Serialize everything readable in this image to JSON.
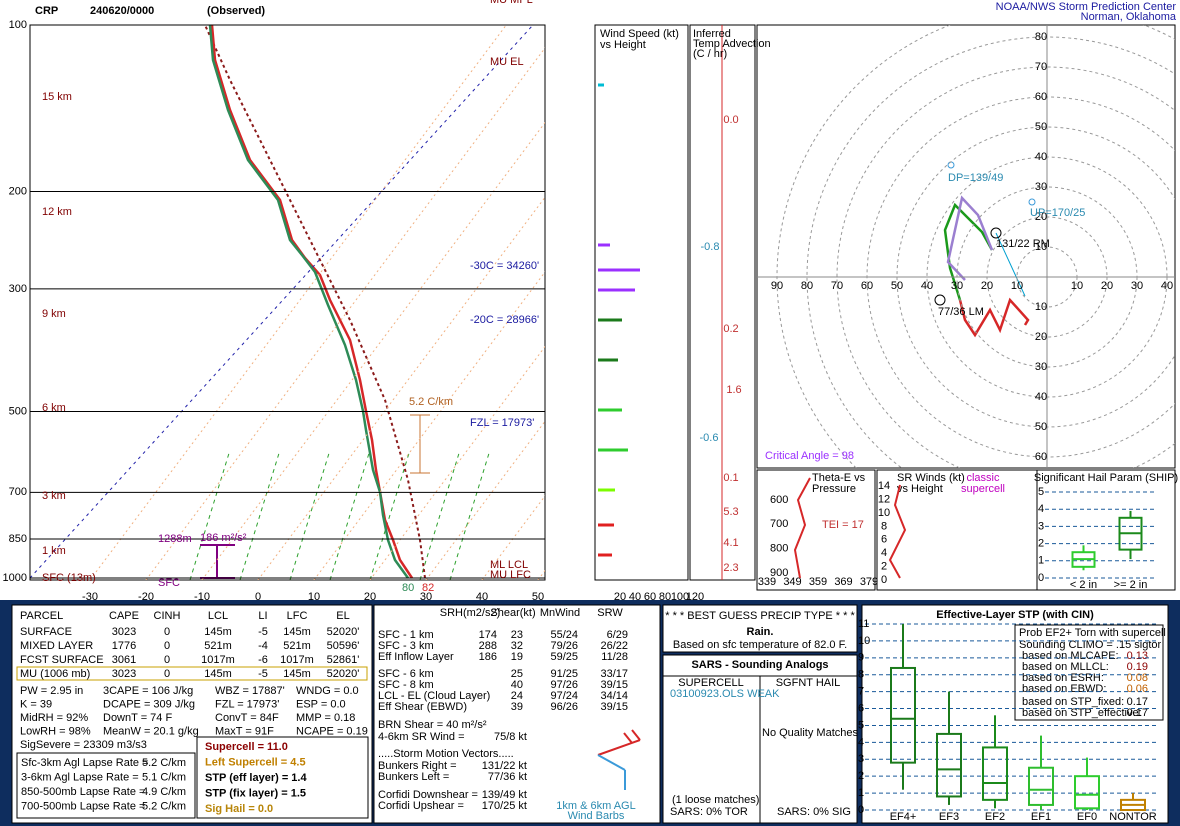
{
  "header": {
    "station": "CRP",
    "date": "240620/0000",
    "kind": "(Observed)",
    "org": "NOAA/NWS Storm Prediction Center",
    "place": "Norman, Oklahoma"
  },
  "skewt": {
    "pressures": [
      100,
      200,
      300,
      500,
      700,
      850,
      1000
    ],
    "heights": [
      "15 km",
      "12 km",
      "9 km",
      "6 km",
      "3 km",
      "1 km",
      "SFC (13m)"
    ],
    "temps": [
      -30,
      -20,
      -10,
      0,
      10,
      20,
      30,
      40,
      50
    ],
    "labels": {
      "mu_mpl": "MU MPL",
      "mu_el": "MU EL",
      "ml_lcl": "ML LCL",
      "mu_lfc": "MU LFC",
      "m30": "-30C = 34260'",
      "m20": "-20C = 28966'",
      "fzl": "FZL = 17973'",
      "lapse": "5.2 C/km",
      "eff_top": "1288m",
      "esrh": "186 m²/s²",
      "sfc": "SFC",
      "td": "80",
      "t": "82"
    }
  },
  "wind_profile": {
    "title": [
      "Wind Speed (kt)",
      "vs Height"
    ],
    "xticks": [
      20,
      40,
      60,
      80,
      100,
      120
    ]
  },
  "temp_adv": {
    "title": [
      "Inferred",
      "Temp Advection",
      "(C / hr)"
    ],
    "values": [
      "0.0",
      "-0.8",
      "0.2",
      "1.6",
      "-0.6",
      "0.1",
      "5.3",
      "4.1",
      "2.3"
    ]
  },
  "hodograph": {
    "rings": [
      10,
      20,
      30,
      40,
      50,
      60,
      70,
      80,
      90
    ],
    "dp": "DP=139/49",
    "up": "UP=170/25",
    "rm": "131/22 RM",
    "lm": "77/36 LM",
    "critical": "Critical Angle = 98"
  },
  "theta_e": {
    "title": [
      "Theta-E vs",
      "Pressure"
    ],
    "tei": "TEI = 17",
    "yticks": [
      600,
      700,
      800,
      900
    ],
    "xticks": [
      339,
      349,
      359,
      369,
      379
    ]
  },
  "sr_winds": {
    "title": [
      "SR Winds (kt)",
      "vs Height"
    ],
    "note": [
      "classic",
      "supercell"
    ],
    "yticks": [
      0,
      2,
      4,
      6,
      8,
      10,
      12,
      14
    ]
  },
  "ship": {
    "title": "Significant Hail Param (SHIP)",
    "ylim": [
      0,
      5
    ],
    "yticks": [
      0,
      1,
      2,
      3,
      4,
      5
    ],
    "categories": [
      "< 2 in",
      ">= 2 in"
    ],
    "boxes": [
      [
        0.45,
        0.65,
        1.1,
        1.5,
        1.9
      ],
      [
        1.1,
        1.65,
        2.6,
        3.5,
        3.9
      ]
    ]
  },
  "parcels": {
    "header": [
      "PARCEL",
      "CAPE",
      "CINH",
      "LCL",
      "LI",
      "LFC",
      "EL"
    ],
    "rows": [
      [
        "SURFACE",
        "3023",
        "0",
        "145m",
        "-5",
        "145m",
        "52020'"
      ],
      [
        "MIXED LAYER",
        "1776",
        "0",
        "521m",
        "-4",
        "521m",
        "50596'"
      ],
      [
        "FCST SURFACE",
        "3061",
        "0",
        "1017m",
        "-6",
        "1017m",
        "52861'"
      ],
      [
        "MU     (1006 mb)",
        "3023",
        "0",
        "145m",
        "-5",
        "145m",
        "52020'"
      ]
    ]
  },
  "indices": [
    [
      "PW = 2.95 in",
      "3CAPE = 106 J/kg",
      "WBZ = 17887'",
      "WNDG = 0.0"
    ],
    [
      "K = 39",
      "DCAPE = 309 J/kg",
      "FZL = 17973'",
      "ESP = 0.0"
    ],
    [
      "MidRH = 92%",
      "DownT = 74 F",
      "ConvT = 84F",
      "MMP = 0.18"
    ],
    [
      "LowRH = 98%",
      "MeanW = 20.1 g/kg",
      "MaxT = 91F",
      "NCAPE = 0.19"
    ],
    [
      "SigSevere = 23309 m3/s3"
    ]
  ],
  "lapse": [
    [
      "Sfc-3km Agl Lapse Rate =",
      "5.2 C/km"
    ],
    [
      "3-6km Agl Lapse Rate =",
      "5.1 C/km"
    ],
    [
      "850-500mb Lapse Rate =",
      "4.9 C/km"
    ],
    [
      "700-500mb Lapse Rate =",
      "5.2 C/km"
    ]
  ],
  "composites": [
    "Supercell = 11.0",
    "Left Supercell = 4.5",
    "STP (eff layer) = 1.4",
    "STP (fix layer) = 1.5",
    "Sig Hail = 0.0"
  ],
  "kinematics": {
    "header": [
      "SRH(m2/s2)",
      "Shear(kt)",
      "MnWind",
      "SRW"
    ],
    "rows": [
      [
        "SFC - 1 km",
        "174",
        "23",
        "55/24",
        "6/29"
      ],
      [
        "SFC - 3 km",
        "288",
        "32",
        "79/26",
        "26/22"
      ],
      [
        "Eff Inflow Layer",
        "186",
        "19",
        "59/25",
        "11/28"
      ],
      [
        "SFC - 6 km",
        null,
        "25",
        "91/25",
        "33/17"
      ],
      [
        "SFC - 8 km",
        null,
        "40",
        "97/26",
        "39/15"
      ],
      [
        "LCL - EL (Cloud Layer)",
        null,
        "24",
        "97/24",
        "34/14"
      ],
      [
        "Eff Shear (EBWD)",
        null,
        "39",
        "96/26",
        "39/15"
      ]
    ],
    "brn": "BRN Shear =  40 m²/s²",
    "sr46": [
      "4-6km SR Wind =",
      "75/8 kt"
    ],
    "motion_title": ".....Storm Motion Vectors.....",
    "motion": [
      [
        "Bunkers Right =",
        "131/22 kt"
      ],
      [
        "Bunkers Left =",
        "77/36 kt"
      ],
      [
        "Corfidi Downshear =",
        "139/49 kt"
      ],
      [
        "Corfidi Upshear =",
        "170/25 kt"
      ]
    ],
    "barb_note": [
      "1km & 6km AGL",
      "Wind Barbs"
    ]
  },
  "precip": {
    "title": "* * * BEST GUESS PRECIP TYPE * * *",
    "type": "Rain.",
    "basis": "Based on sfc temperature of 82.0 F."
  },
  "analogs": {
    "title": "SARS - Sounding Analogs",
    "columns": [
      "SUPERCELL",
      "SGFNT HAIL"
    ],
    "match": "03100923.OLS   WEAK",
    "none": "No Quality Matches",
    "loose": "(1 loose matches)",
    "tor": "SARS:  0% TOR",
    "sig": "SARS:  0% SIG"
  },
  "stp": {
    "title": "Effective-Layer STP (with CIN)",
    "prob": "Prob EF2+ Torn with supercell",
    "climo": "Sounding CLIMO = .15 sigtor",
    "rows": [
      [
        "based on MLCAPE:",
        "0.13"
      ],
      [
        "based on MLLCL:",
        "0.19"
      ],
      [
        "based on ESRH:",
        "0.08"
      ],
      [
        "based on EBWD:",
        "0.06"
      ],
      [
        "based on STP_fixed:",
        "0.17"
      ],
      [
        "based on STP_effective:",
        "0.17"
      ]
    ],
    "ylim": [
      0,
      11
    ],
    "yticks": [
      0,
      1,
      2,
      3,
      4,
      5,
      6,
      7,
      8,
      9,
      10,
      11
    ],
    "categories": [
      "EF4+",
      "EF3",
      "EF2",
      "EF1",
      "EF0",
      "NONTOR"
    ],
    "boxes": [
      [
        1.2,
        2.8,
        5.4,
        8.4,
        11
      ],
      [
        0.3,
        0.8,
        2.4,
        4.5,
        7.0
      ],
      [
        0.1,
        0.6,
        1.6,
        3.7,
        5.6
      ],
      [
        0,
        0.3,
        1.2,
        2.5,
        4.4
      ],
      [
        0,
        0.1,
        0.9,
        2.0,
        3.1
      ],
      [
        0,
        0,
        0.3,
        0.6,
        1.0
      ]
    ]
  }
}
